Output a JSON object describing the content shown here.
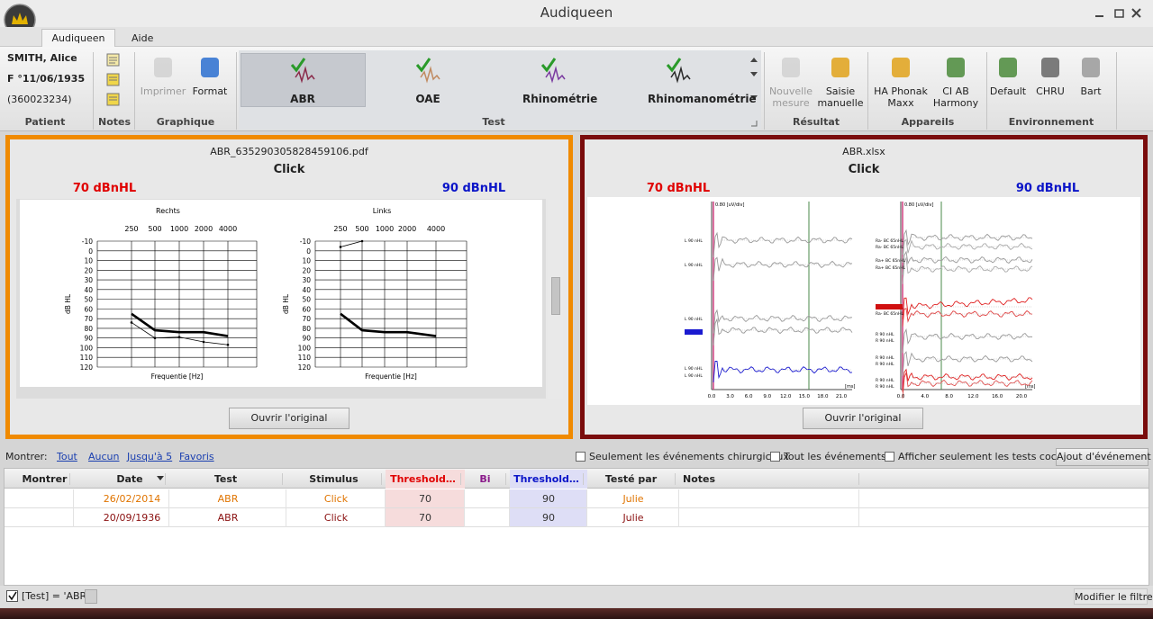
{
  "window": {
    "title": "Audiqueen"
  },
  "menu_tabs": [
    "Audiqueen",
    "Aide"
  ],
  "patient": {
    "name": "SMITH, Alice",
    "details": "F °11/06/1935",
    "id": "(360023234)",
    "group": "Patient"
  },
  "ribbon": {
    "notes": {
      "group": "Notes"
    },
    "graphique": {
      "group": "Graphique",
      "buttons": [
        "Imprimer",
        "Format"
      ]
    },
    "test": {
      "group": "Test",
      "buttons": [
        "ABR",
        "OAE",
        "Rhinométrie",
        "Rhinomanométrie"
      ]
    },
    "resultat": {
      "group": "Résultat",
      "buttons": [
        "Nouvelle mesure",
        "Saisie manuelle"
      ]
    },
    "appareils": {
      "group": "Appareils",
      "buttons": [
        "HA Phonak Maxx",
        "CI AB Harmony"
      ]
    },
    "environnement": {
      "group": "Environnement",
      "buttons": [
        "Default",
        "CHRU",
        "Bart"
      ]
    }
  },
  "previews": [
    {
      "file": "ABR_635290305828459106.pdf",
      "stimulus": "Click",
      "left_level": "70 dBnHL",
      "right_level": "90 dBnHL",
      "button": "Ouvrir l'original"
    },
    {
      "file": "ABR.xlsx",
      "stimulus": "Click",
      "left_level": "70 dBnHL",
      "right_level": "90 dBnHL",
      "button": "Ouvrir l'original"
    }
  ],
  "audiograms": {
    "frequencies": [
      250,
      500,
      1000,
      2000,
      4000
    ],
    "ylabel": "dB HL",
    "xlabel": "Frequentie [Hz]",
    "ylim": [
      -10,
      120
    ],
    "yticks": [
      -10,
      0,
      10,
      20,
      30,
      40,
      50,
      60,
      70,
      80,
      90,
      100,
      110,
      120
    ],
    "charts": [
      {
        "title": "Rechts",
        "series": [
          {
            "values": [
              65,
              82,
              84,
              84,
              88
            ]
          },
          {
            "values": [
              74,
              90,
              89,
              94,
              97
            ]
          }
        ]
      },
      {
        "title": "Links",
        "series": [
          {
            "values": [
              65,
              82,
              84,
              84,
              88
            ]
          },
          {
            "values": [
              -4,
              -10,
              null,
              null,
              null
            ]
          }
        ]
      }
    ]
  },
  "abr": {
    "scale": "0.80 [uV/div]",
    "unit": "[ms]",
    "charts": [
      {
        "xticks": [
          "0.0",
          "3.0",
          "6.0",
          "9.0",
          "12.0",
          "15.0",
          "18.0",
          "21.0"
        ],
        "labels": [
          "L 90 nHL",
          "L 90 nHL",
          "L 90 nHL",
          "L 90 nHL",
          "L 90 nHL"
        ]
      },
      {
        "xticks": [
          "0.0",
          "4.0",
          "8.0",
          "12.0",
          "16.0",
          "20.0"
        ],
        "labels": [
          "Ra- BC 65nHL",
          "Ra- BC 65nHL",
          "Ra+ BC 65nHL",
          "Ra+ BC 65nHL",
          "Ra- BC 65nHL",
          "Ra- BC 65nHL",
          "R 90 nHL",
          "R 90 nHL",
          "R 90 nHL",
          "R 90 nHL",
          "R 90 nHL",
          "R 90 nHL"
        ]
      }
    ]
  },
  "filter": {
    "show_label": "Montrer:",
    "links": [
      "Tout",
      "Aucun",
      "Jusqu'à 5",
      "Favoris"
    ],
    "checkboxes": [
      "Seulement les événements chirurgicaux",
      "Tout les événements",
      "Afficher seulement les tests cochés"
    ],
    "button": "Ajout d'événement"
  },
  "table": {
    "columns": [
      "Montrer",
      "Date",
      "Test",
      "Stimulus",
      "Threshold…",
      "Bi",
      "Threshold…",
      "Testé par",
      "Notes"
    ],
    "rows": [
      {
        "date": "26/02/2014",
        "test": "ABR",
        "stimulus": "Click",
        "threshold_left": 70,
        "threshold_right": 90,
        "tested_by": "Julie"
      },
      {
        "date": "20/09/1936",
        "test": "ABR",
        "stimulus": "Click",
        "threshold_left": 70,
        "threshold_right": 90,
        "tested_by": "Julie"
      }
    ]
  },
  "footer": {
    "filter": "[Test] = 'ABR'",
    "button": "Modifier le filtre"
  }
}
